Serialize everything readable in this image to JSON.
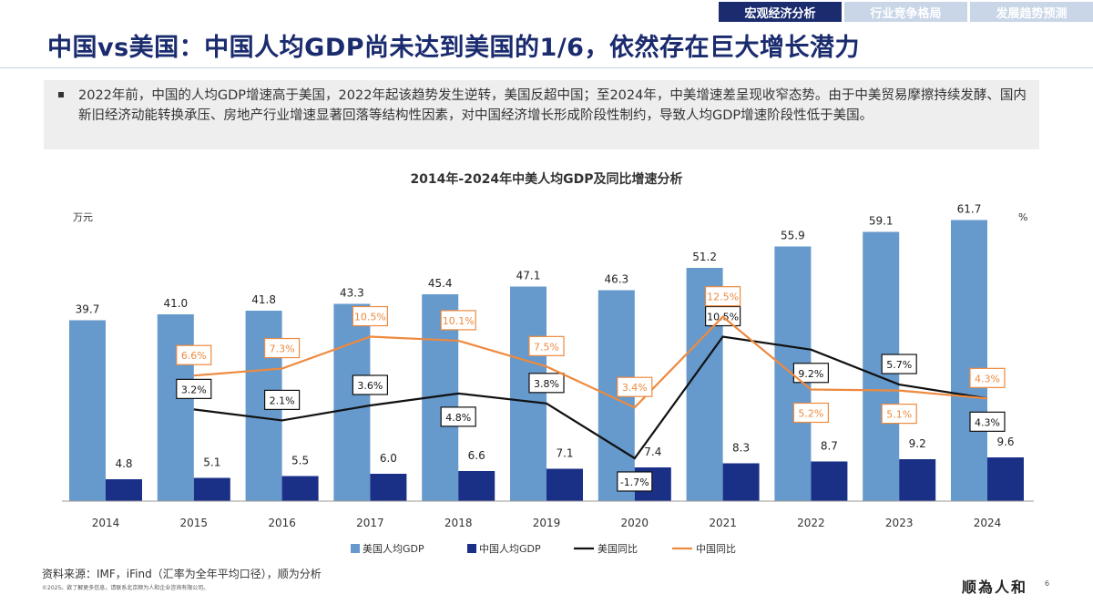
{
  "tabs": [
    {
      "label": "宏观经济分析",
      "active": true
    },
    {
      "label": "行业竞争格局",
      "active": false
    },
    {
      "label": "发展趋势预测",
      "active": false
    }
  ],
  "title": "中国vs美国：中国人均GDP尚未达到美国的1/6，依然存在巨大增长潜力",
  "summary": "2022年前，中国的人均GDP增速高于美国，2022年起该趋势发生逆转，美国反超中国；至2024年，中美增速差呈现收窄态势。由于中美贸易摩擦持续发酵、国内新旧经济动能转换承压、房地产行业增速显著回落等结构性因素，对中国经济增长形成阶段性制约，导致人均GDP增速阶段性低于美国。",
  "source": "资料来源：IMF，iFind（汇率为全年平均口径），顺为分析",
  "copyright": "©2025。欲了解更多信息，请联系北京顺为人和企业咨询有限公司。",
  "logo": "顺為人和",
  "page_number": "6",
  "chart_data": {
    "type": "bar+line",
    "title": "2014年-2024年中美人均GDP及同比增速分析",
    "ylabel_left": "万元",
    "ylabel_right": "%",
    "ylim_left": [
      0,
      70
    ],
    "ylim_right": [
      -6,
      26
    ],
    "grid": false,
    "legend_placement": "bottom",
    "categories": [
      "2014",
      "2015",
      "2016",
      "2017",
      "2018",
      "2019",
      "2020",
      "2021",
      "2022",
      "2023",
      "2024"
    ],
    "series": [
      {
        "name": "美国人均GDP",
        "type": "bar",
        "axis": "left",
        "color": "#6699cc",
        "values": [
          39.7,
          41.0,
          41.8,
          43.3,
          45.4,
          47.1,
          46.3,
          51.2,
          55.9,
          59.1,
          61.7
        ]
      },
      {
        "name": "中国人均GDP",
        "type": "bar",
        "axis": "left",
        "color": "#1a2f86",
        "values": [
          4.8,
          5.1,
          5.5,
          6.0,
          6.6,
          7.1,
          7.4,
          8.3,
          8.7,
          9.2,
          9.6
        ]
      },
      {
        "name": "美国同比",
        "type": "line",
        "axis": "right",
        "color": "#111111",
        "values": [
          null,
          3.2,
          2.1,
          3.6,
          4.8,
          3.8,
          -1.7,
          10.5,
          9.2,
          5.7,
          4.3
        ]
      },
      {
        "name": "中国同比",
        "type": "line",
        "axis": "right",
        "color": "#ed8a3f",
        "values": [
          null,
          6.6,
          7.3,
          10.5,
          10.1,
          7.5,
          3.4,
          12.5,
          5.2,
          5.1,
          4.3
        ]
      }
    ]
  }
}
